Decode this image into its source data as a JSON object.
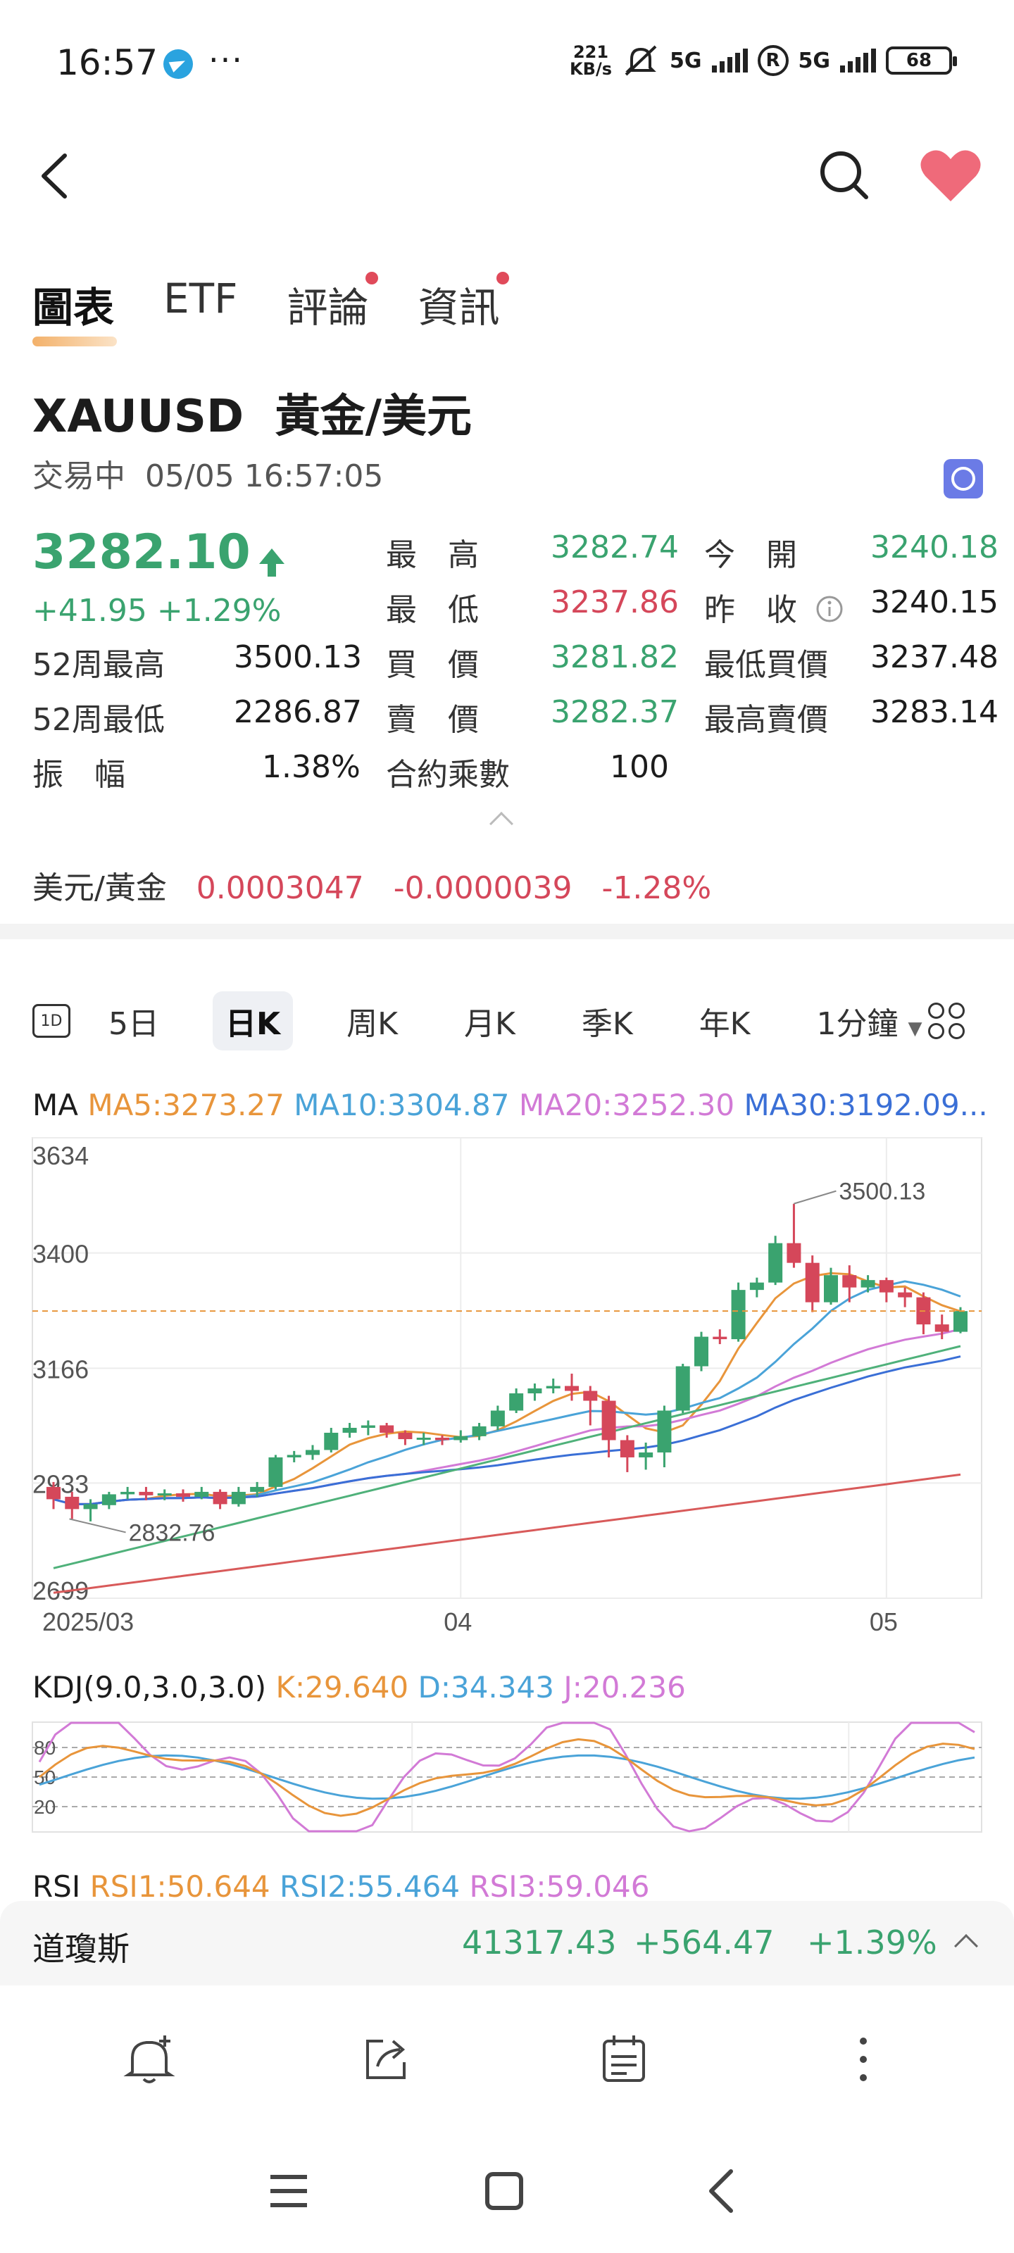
{
  "status_bar": {
    "time": "16:57",
    "more": "···",
    "speed_top": "221",
    "speed_bottom": "KB/s",
    "battery": "68",
    "net1": "5G",
    "net2": "5G",
    "r": "R"
  },
  "tabs": [
    "圖表",
    "ETF",
    "評論",
    "資訊"
  ],
  "instrument": {
    "symbol": "XAUUSD",
    "name": "黃金/美元",
    "trading": "交易中",
    "datetime": "05/05 16:57:05"
  },
  "quote": {
    "price": "3282.10",
    "change": "+41.95",
    "change_pct": "+1.29%",
    "high_label": "最　高",
    "high": "3282.74",
    "open_label": "今　開",
    "open": "3240.18",
    "low_label": "最　低",
    "low": "3237.86",
    "prev_label": "昨　收",
    "prev": "3240.15",
    "w52h_label": "52周最高",
    "w52h": "3500.13",
    "bid_label": "買　價",
    "bid": "3281.82",
    "minbid_label": "最低買價",
    "minbid": "3237.48",
    "w52l_label": "52周最低",
    "w52l": "2286.87",
    "ask_label": "賣　價",
    "ask": "3282.37",
    "maxask_label": "最高賣價",
    "maxask": "3283.14",
    "amp_label": "振　幅",
    "amp": "1.38%",
    "mult_label": "合約乘數",
    "mult": "100"
  },
  "inverse": {
    "label": "美元/黃金",
    "value": "0.0003047",
    "change": "-0.0000039",
    "pct": "-1.28%"
  },
  "periods": {
    "icon": "1D",
    "items": [
      "5日",
      "日K",
      "周K",
      "月K",
      "季K",
      "年K",
      "1分鐘"
    ]
  },
  "ma": {
    "label": "MA",
    "ma5": "MA5:3273.27",
    "ma10": "MA10:3304.87",
    "ma20": "MA20:3252.30",
    "ma30": "MA30:3192.09..."
  },
  "kdj": {
    "label": "KDJ(9.0,3.0,3.0)",
    "k": "K:29.640",
    "d": "D:34.343",
    "j": "J:20.236",
    "levels": [
      "80",
      "50",
      "20"
    ]
  },
  "rsi": {
    "label": "RSI",
    "r1": "RSI1:50.644",
    "r2": "RSI2:55.464",
    "r3": "RSI3:59.046"
  },
  "index_bar": {
    "name": "道瓊斯",
    "value": "41317.43",
    "change": "+564.47",
    "pct": "+1.39%"
  },
  "colors": {
    "up": "#3aa36f",
    "down": "#d5475a",
    "ma5": "#e8953b",
    "ma10": "#4aa3d8",
    "ma20": "#d27ad6",
    "ma30": "#3a6fd6",
    "ma60": "#4fb17a",
    "ma120": "#d85a5a"
  },
  "chart_data": {
    "type": "candlestick",
    "y_ticks": [
      "3634",
      "3400",
      "3166",
      "2933",
      "2699"
    ],
    "ylim": [
      2699,
      3634
    ],
    "x_labels": [
      "2025/03",
      "04",
      "05"
    ],
    "annotations": [
      {
        "text": "3500.13",
        "value": 3500.13
      },
      {
        "text": "2832.76",
        "value": 2832.76
      }
    ],
    "last_price": 3282.1,
    "candles": [
      [
        2925,
        2900,
        2935,
        2880
      ],
      [
        2905,
        2880,
        2915,
        2860
      ],
      [
        2880,
        2890,
        2900,
        2855
      ],
      [
        2888,
        2910,
        2915,
        2880
      ],
      [
        2910,
        2915,
        2925,
        2900
      ],
      [
        2915,
        2908,
        2925,
        2898
      ],
      [
        2908,
        2912,
        2920,
        2898
      ],
      [
        2912,
        2905,
        2920,
        2895
      ],
      [
        2905,
        2915,
        2925,
        2900
      ],
      [
        2915,
        2890,
        2920,
        2880
      ],
      [
        2890,
        2915,
        2925,
        2885
      ],
      [
        2915,
        2925,
        2935,
        2905
      ],
      [
        2925,
        2985,
        2990,
        2920
      ],
      [
        2985,
        2990,
        2998,
        2975
      ],
      [
        2990,
        3000,
        3010,
        2980
      ],
      [
        3000,
        3035,
        3045,
        2995
      ],
      [
        3035,
        3045,
        3055,
        3025
      ],
      [
        3045,
        3050,
        3060,
        3030
      ],
      [
        3050,
        3035,
        3055,
        3025
      ],
      [
        3035,
        3022,
        3040,
        3010
      ],
      [
        3022,
        3025,
        3035,
        3010
      ],
      [
        3025,
        3020,
        3030,
        3010
      ],
      [
        3020,
        3028,
        3040,
        3015
      ],
      [
        3028,
        3048,
        3055,
        3020
      ],
      [
        3048,
        3080,
        3090,
        3040
      ],
      [
        3080,
        3115,
        3125,
        3075
      ],
      [
        3115,
        3125,
        3135,
        3100
      ],
      [
        3125,
        3130,
        3145,
        3115
      ],
      [
        3130,
        3120,
        3155,
        3100
      ],
      [
        3120,
        3100,
        3130,
        3050
      ],
      [
        3100,
        3020,
        3110,
        2985
      ],
      [
        3020,
        2985,
        3030,
        2955
      ],
      [
        2985,
        2995,
        3015,
        2960
      ],
      [
        2995,
        3080,
        3090,
        2965
      ],
      [
        3080,
        3170,
        3175,
        3075
      ],
      [
        3170,
        3230,
        3240,
        3160
      ],
      [
        3230,
        3225,
        3245,
        3215
      ],
      [
        3225,
        3325,
        3340,
        3220
      ],
      [
        3325,
        3340,
        3350,
        3310
      ],
      [
        3340,
        3420,
        3435,
        3335
      ],
      [
        3420,
        3380,
        3500,
        3370
      ],
      [
        3380,
        3300,
        3395,
        3280
      ],
      [
        3300,
        3355,
        3370,
        3295
      ],
      [
        3355,
        3330,
        3375,
        3300
      ],
      [
        3330,
        3345,
        3355,
        3320
      ],
      [
        3345,
        3320,
        3350,
        3300
      ],
      [
        3320,
        3310,
        3330,
        3290
      ],
      [
        3310,
        3255,
        3320,
        3235
      ],
      [
        3255,
        3240,
        3275,
        3225
      ],
      [
        3240,
        3282,
        3290,
        3237
      ]
    ]
  }
}
